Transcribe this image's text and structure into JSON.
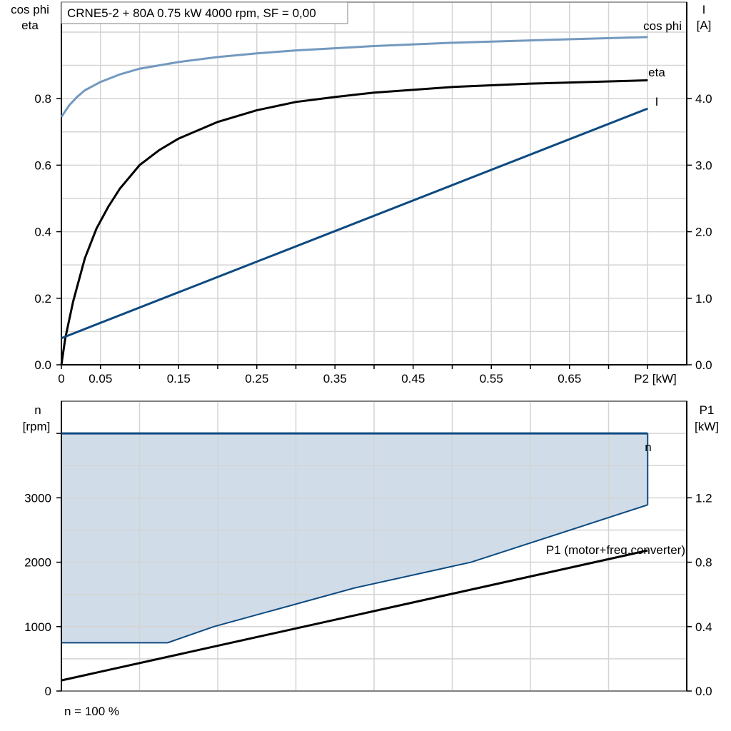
{
  "chart_data": [
    {
      "type": "line",
      "title": "CRNE5-2 + 80A   0.75 kW   4000 rpm, SF = 0,00",
      "xlabel": "P2 [kW]",
      "ylabel_left": [
        "cos phi",
        "eta"
      ],
      "ylabel_right": [
        "I",
        "[A]"
      ],
      "xlim": [
        0,
        0.8
      ],
      "ylim_left": [
        0,
        1.09
      ],
      "ylim_right": [
        0,
        5.45
      ],
      "x_tick_labels": [
        "0",
        "0.05",
        "0.15",
        "0.25",
        "0.35",
        "0.45",
        "0.55",
        "0.65"
      ],
      "x_ticks": [
        0,
        0.05,
        0.15,
        0.25,
        0.35,
        0.45,
        0.55,
        0.65
      ],
      "y_left_ticks": [
        "0.0",
        "0.2",
        "0.4",
        "0.6",
        "0.8"
      ],
      "y_right_ticks": [
        "0.0",
        "1.0",
        "2.0",
        "3.0",
        "4.0"
      ],
      "grid": true,
      "series": [
        {
          "name": "cos phi",
          "axis": "left",
          "color": "#7399bf",
          "x": [
            0,
            0.01,
            0.02,
            0.03,
            0.05,
            0.075,
            0.1,
            0.15,
            0.2,
            0.25,
            0.3,
            0.4,
            0.5,
            0.6,
            0.75
          ],
          "y": [
            0.745,
            0.78,
            0.805,
            0.825,
            0.85,
            0.873,
            0.89,
            0.91,
            0.925,
            0.936,
            0.945,
            0.958,
            0.968,
            0.975,
            0.985
          ]
        },
        {
          "name": "eta",
          "axis": "left",
          "color": "#000000",
          "x": [
            0,
            0.005,
            0.015,
            0.03,
            0.045,
            0.06,
            0.075,
            0.1,
            0.125,
            0.15,
            0.2,
            0.25,
            0.3,
            0.35,
            0.4,
            0.5,
            0.6,
            0.75
          ],
          "y": [
            0,
            0.08,
            0.19,
            0.32,
            0.41,
            0.475,
            0.53,
            0.6,
            0.645,
            0.68,
            0.73,
            0.765,
            0.79,
            0.805,
            0.818,
            0.835,
            0.845,
            0.855
          ]
        },
        {
          "name": "I",
          "axis": "right",
          "color": "#0d4a80",
          "x": [
            0,
            0.75
          ],
          "y": [
            0.4,
            3.85
          ]
        }
      ]
    },
    {
      "type": "area",
      "xlabel": "",
      "ylabel_left": [
        "n",
        "[rpm]"
      ],
      "ylabel_right": [
        "P1",
        "[kW]"
      ],
      "xlim": [
        0,
        0.8
      ],
      "ylim_left": [
        0,
        4500
      ],
      "ylim_right": [
        0,
        1.8
      ],
      "y_left_ticks": [
        "0",
        "1000",
        "2000",
        "3000"
      ],
      "y_right_ticks": [
        "0.0",
        "0.4",
        "0.8",
        "1.2"
      ],
      "grid": true,
      "footnote": "n = 100 %",
      "series": [
        {
          "name": "n",
          "axis": "left",
          "color": "#0d4a80",
          "fill": "#d0dce8",
          "x": [
            0,
            0.75
          ],
          "y": [
            4000,
            4000
          ],
          "lower_x": [
            0,
            0.136,
            0.195,
            0.375,
            0.524,
            0.75
          ],
          "lower_y": [
            750,
            750,
            1000,
            1600,
            2000,
            2890
          ]
        },
        {
          "name": "P1 (motor+freq.converter)",
          "axis": "right",
          "color": "#000000",
          "x": [
            0,
            0.75
          ],
          "y": [
            0.066,
            0.873
          ]
        }
      ]
    }
  ]
}
